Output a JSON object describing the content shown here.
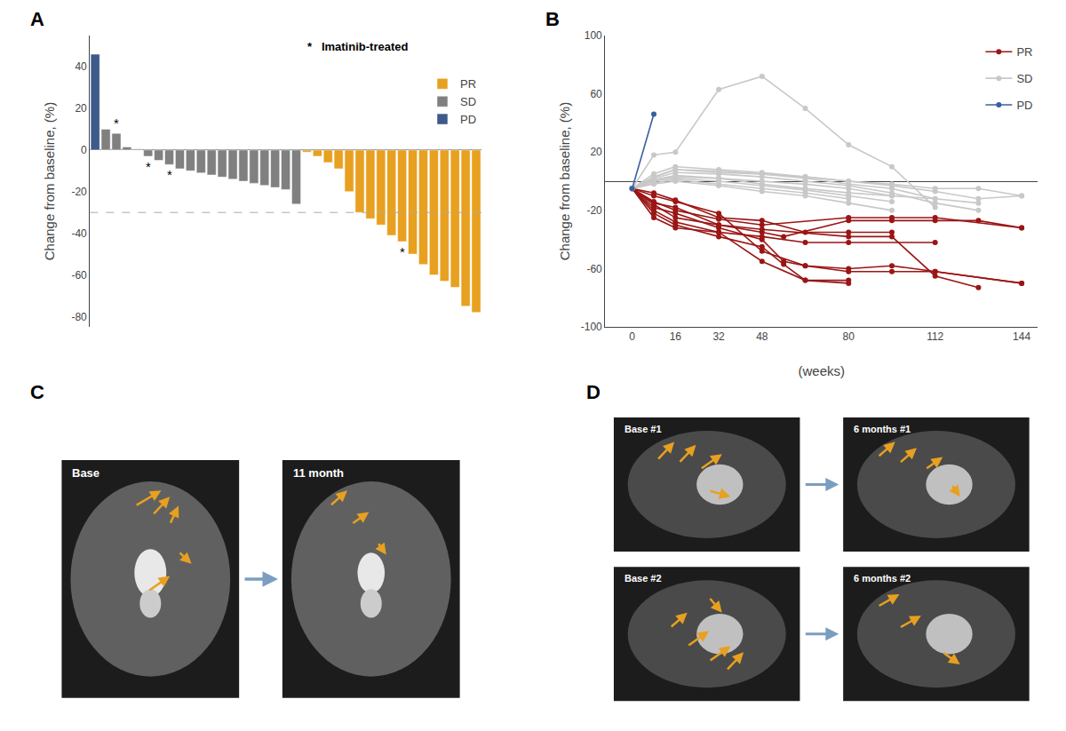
{
  "chart_data": [
    {
      "type": "bar",
      "title": "A",
      "ylabel": "Change from baseline, (%)",
      "categories": [
        null,
        null,
        null,
        null,
        null,
        null,
        null,
        null,
        null,
        null,
        null,
        null,
        null,
        null,
        null,
        null,
        null,
        null,
        null,
        null,
        null,
        null,
        null,
        null,
        null,
        null,
        null,
        null,
        null,
        null,
        null,
        null,
        null,
        null,
        null,
        null,
        null
      ],
      "series": [
        {
          "name": "PR",
          "color": "#e8a020",
          "values": [
            null,
            null,
            null,
            null,
            null,
            null,
            null,
            null,
            null,
            null,
            null,
            null,
            null,
            null,
            null,
            null,
            null,
            null,
            null,
            null,
            -1,
            -3,
            -6,
            -9,
            -20,
            -30,
            -33,
            -36,
            -41,
            -44,
            -50,
            -55,
            -60,
            -63,
            -66,
            -75,
            -78
          ]
        },
        {
          "name": "SD",
          "color": "#808080",
          "values": [
            null,
            10,
            8,
            1.5,
            0.5,
            -3,
            -5,
            -7,
            -9,
            -10,
            -11,
            -12,
            -13,
            -14,
            -15,
            -16,
            -17,
            -18,
            -19,
            -26,
            null,
            null,
            null,
            null,
            null,
            null,
            null,
            null,
            null,
            null,
            null,
            null,
            null,
            null,
            null,
            null,
            null
          ]
        },
        {
          "name": "PD",
          "color": "#3d5a8a",
          "values": [
            46,
            null,
            null,
            null,
            null,
            null,
            null,
            null,
            null,
            null,
            null,
            null,
            null,
            null,
            null,
            null,
            null,
            null,
            null,
            null,
            null,
            null,
            null,
            null,
            null,
            null,
            null,
            null,
            null,
            null,
            null,
            null,
            null,
            null,
            null,
            null,
            null
          ]
        }
      ],
      "ylim": [
        -85,
        55
      ],
      "yticks": [
        -80,
        -60,
        -40,
        -20,
        0,
        20,
        40
      ],
      "reference_line": -30,
      "annotations": [
        {
          "x": 2,
          "text": "*"
        },
        {
          "x": 5,
          "text": "*"
        },
        {
          "x": 7,
          "text": "*"
        },
        {
          "x": 29,
          "text": "*"
        },
        {
          "text": "*   Imatinib-treated"
        }
      ],
      "legend": "upper right",
      "grid": false,
      "tick_labels": "y"
    },
    {
      "type": "line",
      "title": "B",
      "ylabel": "Change from baseline, (%)",
      "xlabel": "(weeks)",
      "series": [
        {
          "name": "PR",
          "color": "#9b1515",
          "x": [
            0,
            8,
            16,
            32,
            48,
            56,
            80,
            96,
            112,
            128,
            144
          ],
          "values": [
            -5,
            -15,
            -18,
            -30,
            -35,
            -38,
            -27,
            -27,
            -27,
            -27,
            -32
          ]
        },
        {
          "name": "PR",
          "color": "#9b1515",
          "x": [
            0,
            8,
            16,
            32,
            48,
            80,
            96,
            112,
            144
          ],
          "values": [
            -5,
            -14,
            -20,
            -26,
            -30,
            -25,
            -25,
            -25,
            -32
          ]
        },
        {
          "name": "PR",
          "color": "#9b1515",
          "x": [
            0,
            8,
            16,
            32,
            48,
            56,
            64,
            80,
            96,
            112,
            144
          ],
          "values": [
            -5,
            -18,
            -22,
            -32,
            -40,
            -55,
            -58,
            -60,
            -58,
            -62,
            -70
          ]
        },
        {
          "name": "PR",
          "color": "#9b1515",
          "x": [
            0,
            8,
            16,
            32,
            48,
            64,
            80
          ],
          "values": [
            -5,
            -20,
            -28,
            -35,
            -55,
            -68,
            -68
          ]
        },
        {
          "name": "PR",
          "color": "#9b1515",
          "x": [
            0,
            8,
            16,
            32,
            48,
            64,
            80,
            112
          ],
          "values": [
            -5,
            -25,
            -32,
            -35,
            -38,
            -42,
            -42,
            -42
          ]
        },
        {
          "name": "PR",
          "color": "#9b1515",
          "x": [
            0,
            8,
            16,
            32,
            48,
            56,
            64,
            80
          ],
          "values": [
            -5,
            -22,
            -30,
            -38,
            -45,
            -57,
            -68,
            -70
          ]
        },
        {
          "name": "PR",
          "color": "#9b1515",
          "x": [
            0,
            8,
            16,
            32,
            48,
            80,
            96,
            112,
            128
          ],
          "values": [
            -5,
            -16,
            -25,
            -30,
            -33,
            -38,
            -38,
            -65,
            -73
          ]
        },
        {
          "name": "PR",
          "color": "#9b1515",
          "x": [
            0,
            8,
            16,
            32,
            48,
            64,
            80,
            96,
            112,
            144
          ],
          "values": [
            -5,
            -10,
            -14,
            -22,
            -48,
            -58,
            -62,
            -62,
            -62,
            -70
          ]
        },
        {
          "name": "PR",
          "color": "#9b1515",
          "x": [
            0,
            8,
            16,
            32,
            48,
            64,
            80,
            96
          ],
          "values": [
            -5,
            -8,
            -13,
            -25,
            -27,
            -35,
            -35,
            -35
          ]
        },
        {
          "name": "SD",
          "color": "#c8c8c8",
          "x": [
            0,
            8,
            16,
            32,
            48,
            64,
            80,
            96,
            112,
            128,
            144
          ],
          "values": [
            -5,
            3,
            8,
            6,
            5,
            3,
            0,
            -2,
            -5,
            -5,
            -10
          ]
        },
        {
          "name": "SD",
          "color": "#c8c8c8",
          "x": [
            0,
            8,
            16,
            32,
            48,
            64,
            80,
            96,
            112,
            128,
            144
          ],
          "values": [
            -5,
            5,
            10,
            8,
            6,
            3,
            0,
            -3,
            -7,
            -12,
            -10
          ]
        },
        {
          "name": "SD",
          "color": "#c8c8c8",
          "x": [
            0,
            8,
            16,
            32,
            48,
            64,
            80,
            96,
            112
          ],
          "values": [
            -5,
            18,
            20,
            63,
            72,
            50,
            25,
            10,
            -18
          ]
        },
        {
          "name": "SD",
          "color": "#c8c8c8",
          "x": [
            0,
            8,
            16,
            32,
            48,
            64,
            80,
            96,
            112,
            128
          ],
          "values": [
            -5,
            3,
            8,
            7,
            5,
            2,
            -2,
            -5,
            -12,
            -15
          ]
        },
        {
          "name": "SD",
          "color": "#c8c8c8",
          "x": [
            0,
            8,
            16,
            32,
            48,
            64,
            80,
            96,
            112,
            128
          ],
          "values": [
            -5,
            2,
            6,
            5,
            3,
            0,
            -3,
            -8,
            -15,
            -20
          ]
        },
        {
          "name": "SD",
          "color": "#c8c8c8",
          "x": [
            0,
            8,
            16,
            32,
            48,
            64,
            80,
            96
          ],
          "values": [
            -5,
            1,
            4,
            2,
            0,
            -2,
            -5,
            -10
          ]
        },
        {
          "name": "SD",
          "color": "#c8c8c8",
          "x": [
            0,
            8,
            16,
            32,
            48,
            64,
            80,
            96,
            112
          ],
          "values": [
            -5,
            1,
            3,
            2,
            -2,
            -5,
            -8,
            -10,
            -12
          ]
        },
        {
          "name": "SD",
          "color": "#c8c8c8",
          "x": [
            0,
            8,
            16,
            32,
            48,
            64,
            80,
            96
          ],
          "values": [
            -5,
            0,
            2,
            0,
            -3,
            -6,
            -10,
            -14
          ]
        },
        {
          "name": "SD",
          "color": "#c8c8c8",
          "x": [
            0,
            8,
            16,
            32,
            48,
            64,
            80
          ],
          "values": [
            -5,
            -1,
            1,
            -2,
            -5,
            -8,
            -12
          ]
        },
        {
          "name": "SD",
          "color": "#c8c8c8",
          "x": [
            0,
            8,
            16,
            32,
            48,
            64,
            80,
            96
          ],
          "values": [
            -5,
            -2,
            0,
            -3,
            -7,
            -10,
            -15,
            -20
          ]
        },
        {
          "name": "PD",
          "color": "#3a5fa0",
          "x": [
            0,
            8
          ],
          "values": [
            -5,
            46
          ]
        }
      ],
      "xlim": [
        -10,
        150
      ],
      "xticks": [
        0,
        16,
        32,
        48,
        80,
        112,
        144
      ],
      "ylim": [
        -100,
        100
      ],
      "yticks": [
        -100,
        -60,
        -20,
        20,
        60,
        100
      ],
      "marker": "circle",
      "legend": "upper right",
      "grid": false
    },
    {
      "type": "image",
      "title": "C",
      "annotations": [
        {
          "text": "Base"
        },
        {
          "text": "11 month"
        }
      ]
    },
    {
      "type": "image",
      "title": "D",
      "annotations": [
        {
          "text": "Base #1"
        },
        {
          "text": "6 months #1"
        },
        {
          "text": "Base #2"
        },
        {
          "text": "6 months #2"
        }
      ]
    }
  ]
}
